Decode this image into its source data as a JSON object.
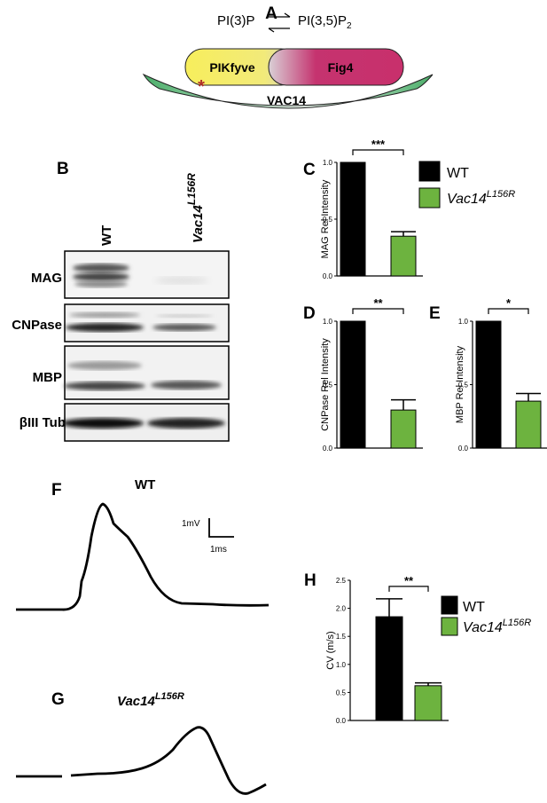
{
  "colors": {
    "wt": "#000000",
    "mutant": "#6db33f",
    "pikfyve": "#f5ea5a",
    "fig4": "#c5336f",
    "vac14": "#4cae6a",
    "mutation_mark": "#b0302a"
  },
  "panel_a": {
    "letter": "A",
    "substrate": "PI(3)P",
    "product": "PI(3,5)P",
    "product_subscript": "2",
    "pikfyve": "PIKfyve",
    "fig4": "Fig4",
    "vac14": "VAC14",
    "mutation_mark": "*"
  },
  "panel_b": {
    "letter": "B",
    "lanes": [
      "WT",
      "Vac14",
      "L156R"
    ],
    "blots": [
      "MAG",
      "CNPase",
      "MBP",
      "βIII Tub"
    ]
  },
  "legend_top": {
    "wt": "WT",
    "mutant_base": "Vac14",
    "mutant_sup": "L156R"
  },
  "legend_h": {
    "wt": "WT",
    "mutant_base": "Vac14",
    "mutant_sup": "L156R"
  },
  "trace_f": {
    "letter": "F",
    "label": "WT",
    "scale_v": "1mV",
    "scale_t": "1ms"
  },
  "trace_g": {
    "letter": "G",
    "label_base": "Vac14",
    "label_sup": "L156R"
  },
  "chart_data": [
    {
      "panel": "C",
      "type": "bar",
      "categories": [
        "WT",
        "Vac14 L156R"
      ],
      "values": [
        1.0,
        0.35
      ],
      "errors": [
        0,
        0.04
      ],
      "ylabel": "MAG Rel Intensity",
      "ylim": [
        0,
        1.0
      ],
      "yticks": [
        "0.0",
        "0.5",
        "1.0"
      ],
      "significance": "***"
    },
    {
      "panel": "D",
      "type": "bar",
      "categories": [
        "WT",
        "Vac14 L156R"
      ],
      "values": [
        1.0,
        0.3
      ],
      "errors": [
        0,
        0.08
      ],
      "ylabel": "CNPase Rel Intensity",
      "ylim": [
        0,
        1.0
      ],
      "yticks": [
        "0.0",
        "0.5",
        "1.0"
      ],
      "significance": "**"
    },
    {
      "panel": "E",
      "type": "bar",
      "categories": [
        "WT",
        "Vac14 L156R"
      ],
      "values": [
        1.0,
        0.37
      ],
      "errors": [
        0,
        0.06
      ],
      "ylabel": "MBP Rel Intensity",
      "ylim": [
        0,
        1.0
      ],
      "yticks": [
        "0.0",
        "0.5",
        "1.0"
      ],
      "significance": "*"
    },
    {
      "panel": "H",
      "type": "bar",
      "categories": [
        "WT",
        "Vac14 L156R"
      ],
      "values": [
        1.85,
        0.62
      ],
      "errors": [
        0.32,
        0.05
      ],
      "ylabel": "CV (m/s)",
      "ylim": [
        0,
        2.5
      ],
      "yticks": [
        "0.0",
        "0.5",
        "1.0",
        "1.5",
        "2.0",
        "2.5"
      ],
      "significance": "**"
    }
  ]
}
